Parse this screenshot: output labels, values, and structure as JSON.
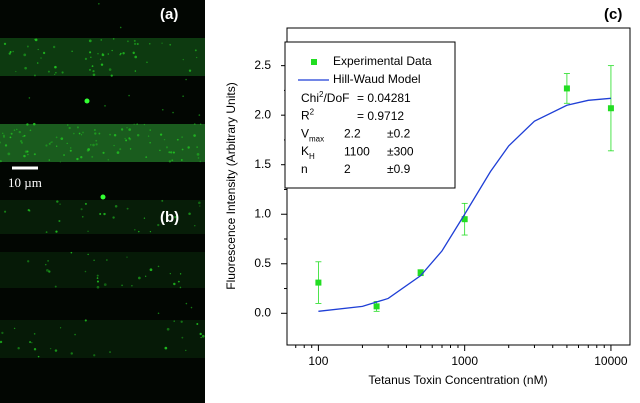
{
  "image": {
    "labels": [
      "(a)",
      "(b)"
    ],
    "scale_bar": "10 µm"
  },
  "chart_data": {
    "type": "scatter",
    "panel_label": "(c)",
    "xlabel": "Tetanus Toxin Concentration (nM)",
    "ylabel": "Fluorescence Intensity (Arbitrary Units)",
    "xscale": "log",
    "xlim": [
      61,
      13500
    ],
    "ylim": [
      -0.32,
      2.88
    ],
    "xticks": [
      100,
      1000,
      10000
    ],
    "yticks": [
      {
        "value": 0,
        "label": "0.0"
      },
      {
        "value": 0.5,
        "label": "0.5"
      },
      {
        "value": 1,
        "label": "1.0"
      },
      {
        "value": 1.5,
        "label": "1.5"
      },
      {
        "value": 2,
        "label": "2.0"
      },
      {
        "value": 2.5,
        "label": "2.5"
      }
    ],
    "series": [
      {
        "name": "Experimental Data",
        "type": "scatter",
        "color": "#22dd22",
        "x": [
          100,
          250,
          500,
          1000,
          5000,
          10000
        ],
        "values": [
          0.31,
          0.07,
          0.41,
          0.95,
          2.27,
          2.07
        ],
        "errors": [
          0.21,
          0.05,
          0.03,
          0.16,
          0.15,
          0.43
        ]
      },
      {
        "name": "Hill-Waud Model",
        "type": "line",
        "color": "#1f3fd6",
        "x": [
          100,
          200,
          300,
          500,
          700,
          1000,
          1500,
          2000,
          3000,
          5000,
          7000,
          10000
        ],
        "values": [
          0.02,
          0.07,
          0.15,
          0.38,
          0.63,
          1.0,
          1.43,
          1.69,
          1.94,
          2.1,
          2.15,
          2.17
        ]
      }
    ],
    "legend": {
      "position": "upper left",
      "stats": [
        {
          "name": "Chi",
          "sup": "2",
          "suffix": "/DoF",
          "value": "= 0.04281"
        },
        {
          "name": "R",
          "sup": "2",
          "value": "= 0.9712"
        },
        {
          "name": "V",
          "sub": "max",
          "value": "2.2",
          "error": "±0.2"
        },
        {
          "name": "K",
          "sub": "H",
          "value": "1100",
          "error": "±300"
        },
        {
          "name": "n",
          "value": "2",
          "error": "±0.9"
        }
      ]
    }
  }
}
